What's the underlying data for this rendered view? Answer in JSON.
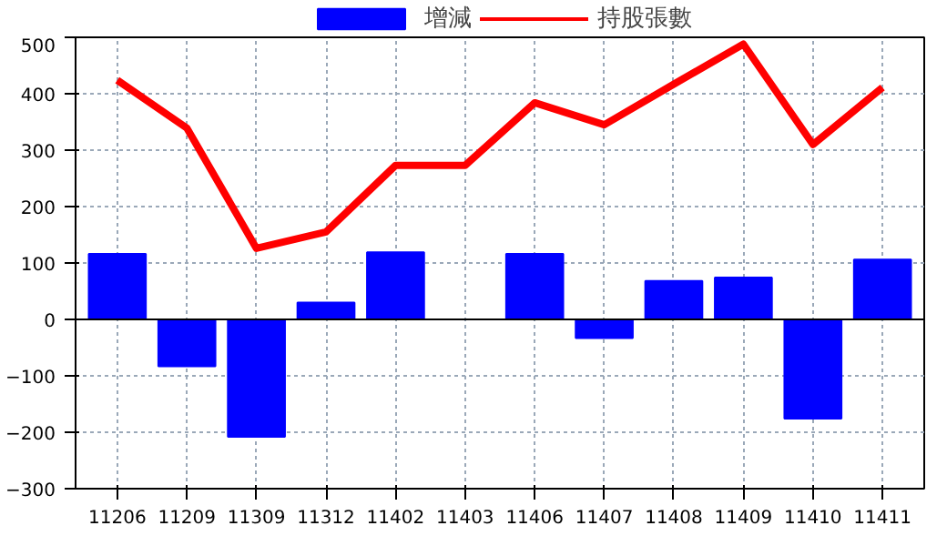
{
  "chart_data": {
    "type": "bar",
    "categories": [
      "11206",
      "11209",
      "11309",
      "11312",
      "11402",
      "11403",
      "11406",
      "11407",
      "11408",
      "11409",
      "11410",
      "11411"
    ],
    "series": [
      {
        "name": "增減",
        "color": "#0000ff",
        "values": [
          116,
          -83,
          -208,
          30,
          119,
          0,
          116,
          -33,
          68,
          74,
          -176,
          106
        ]
      },
      {
        "name": "持股張數",
        "type": "line",
        "color": "#ff0000",
        "values": [
          424,
          339,
          126,
          155,
          273,
          273,
          384,
          345,
          417,
          488,
          310,
          411
        ]
      }
    ],
    "ylim": [
      -300,
      500
    ],
    "yticks": [
      -300,
      -200,
      -100,
      0,
      100,
      200,
      300,
      400,
      500
    ],
    "grid": true,
    "legend": "top"
  }
}
